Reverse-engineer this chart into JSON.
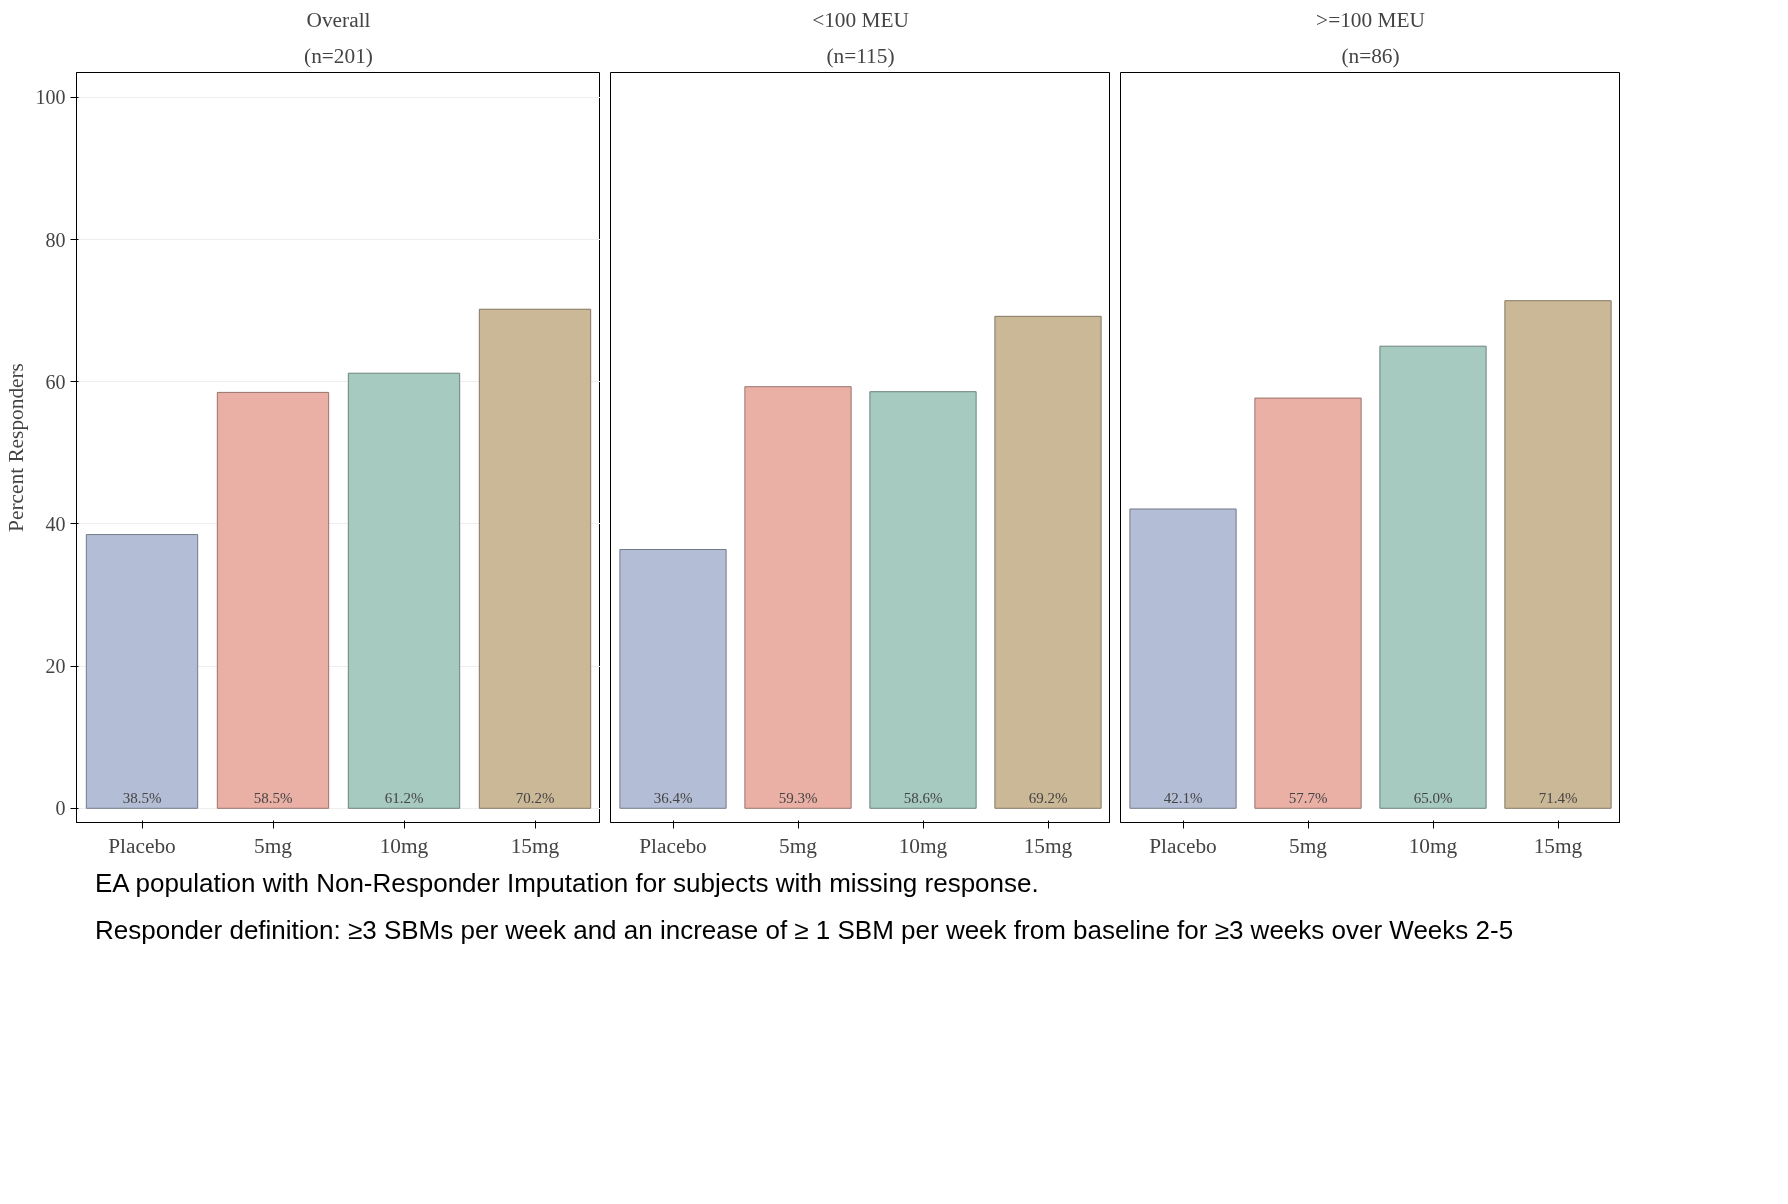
{
  "chart_data": [
    {
      "type": "bar",
      "title": "Overall",
      "subtitle": "(n=201)",
      "ylabel": "Percent Responders",
      "categories": [
        "Placebo",
        "5mg",
        "10mg",
        "15mg"
      ],
      "values": [
        38.5,
        58.5,
        61.2,
        70.2
      ],
      "value_labels": [
        "38.5%",
        "58.5%",
        "61.2%",
        "70.2%"
      ],
      "colors": [
        "#b4bdd6",
        "#eab0a6",
        "#a6cabf",
        "#cbb897"
      ],
      "ylim": [
        -2,
        103.5
      ],
      "yticks": [
        0,
        20,
        40,
        60,
        80,
        100
      ],
      "grid": "y",
      "annotations": [
        "EA population with Non-Responder Imputation for subjects with missing response.",
        "Responder definition: ≥3 SBMs per week and an increase of ≥ 1 SBM per week from baseline for ≥3 weeks over Weeks 2-5"
      ]
    },
    {
      "type": "bar",
      "title": "<100 MEU",
      "subtitle": "(n=115)",
      "categories": [
        "Placebo",
        "5mg",
        "10mg",
        "15mg"
      ],
      "values": [
        36.4,
        59.3,
        58.6,
        69.2
      ],
      "value_labels": [
        "36.4%",
        "59.3%",
        "58.6%",
        "69.2%"
      ],
      "colors": [
        "#b4bdd6",
        "#eab0a6",
        "#a6cabf",
        "#cbb897"
      ],
      "ylim": [
        -2,
        103.5
      ],
      "grid": "y",
      "tick_labels": "x"
    },
    {
      "type": "bar",
      "title": ">=100 MEU",
      "subtitle": "(n=86)",
      "categories": [
        "Placebo",
        "5mg",
        "10mg",
        "15mg"
      ],
      "values": [
        42.1,
        57.7,
        65.0,
        71.4
      ],
      "value_labels": [
        "42.1%",
        "57.7%",
        "65.0%",
        "71.4%"
      ],
      "colors": [
        "#b4bdd6",
        "#eab0a6",
        "#a6cabf",
        "#cbb897"
      ],
      "ylim": [
        -2,
        103.5
      ],
      "grid": "y",
      "tick_labels": "x"
    }
  ]
}
